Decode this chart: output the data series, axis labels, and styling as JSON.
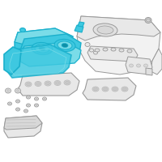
{
  "bg_color": "#ffffff",
  "hc": "#1ab0cc",
  "hf": "#3ec8e0",
  "hf2": "#7adce8",
  "hf_dark": "#0e90a8",
  "oc": "#555555",
  "lc": "#999999",
  "vlc": "#bbbbbb",
  "fig_width": 2.0,
  "fig_height": 2.0,
  "dpi": 100
}
